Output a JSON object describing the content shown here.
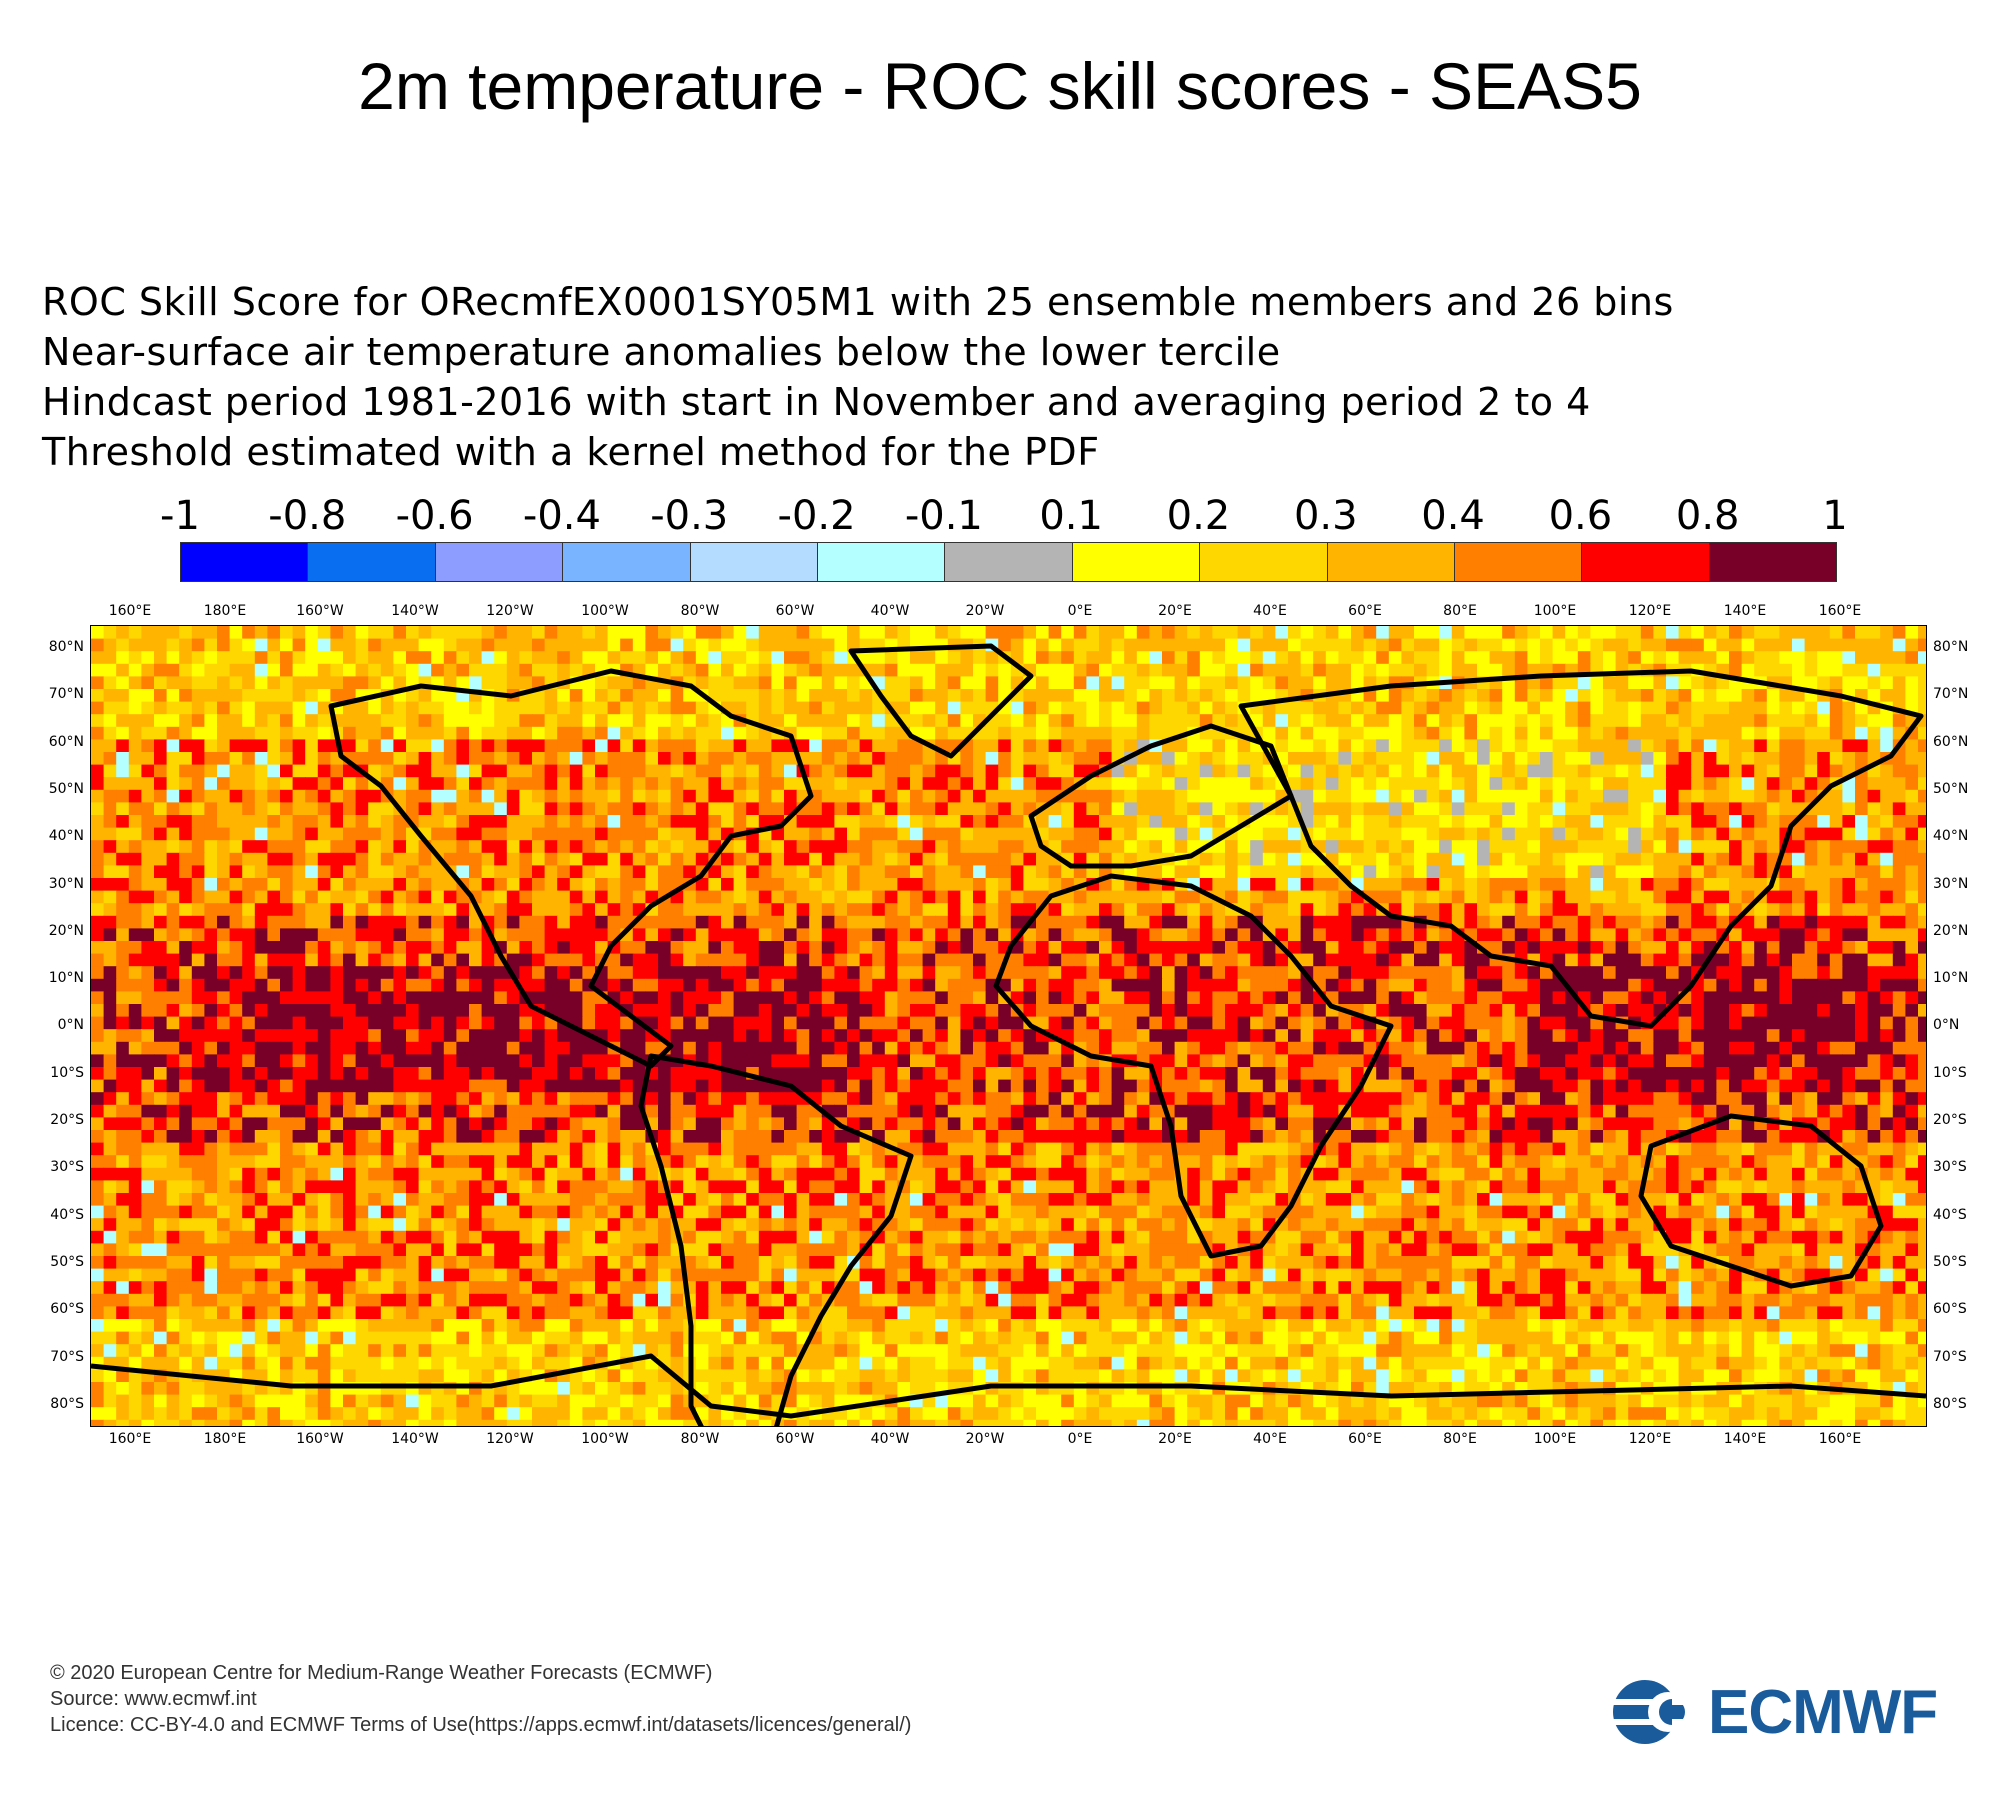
{
  "title": "2m temperature - ROC skill scores - SEAS5",
  "subtitle_lines": [
    "ROC Skill Score for ORecmfEX0001SY05M1 with 25 ensemble members and 26 bins",
    "Near-surface air temperature anomalies below the lower tercile",
    "Hindcast period 1981-2016 with start in November and averaging period  2 to  4",
    "Threshold estimated with a kernel method for the PDF"
  ],
  "colorbar": {
    "labels": [
      "-1",
      "-0.8",
      "-0.6",
      "-0.4",
      "-0.3",
      "-0.2",
      "-0.1",
      "0.1",
      "0.2",
      "0.3",
      "0.4",
      "0.6",
      "0.8",
      "1"
    ],
    "colors": [
      "#0000ff",
      "#0a6ef0",
      "#8c9cff",
      "#78b4ff",
      "#b4dcff",
      "#b4ffff",
      "#b4b4b4",
      "#ffff00",
      "#ffd700",
      "#ffb400",
      "#ff7f00",
      "#ff0000",
      "#780028"
    ]
  },
  "map": {
    "lon_labels": [
      "160°E",
      "180°E",
      "160°W",
      "140°W",
      "120°W",
      "100°W",
      "80°W",
      "60°W",
      "40°W",
      "20°W",
      "0°E",
      "20°E",
      "40°E",
      "60°E",
      "80°E",
      "100°E",
      "120°E",
      "140°E",
      "160°E"
    ],
    "lat_labels": [
      "80°N",
      "70°N",
      "60°N",
      "50°N",
      "40°N",
      "30°N",
      "20°N",
      "10°N",
      "0°N",
      "10°S",
      "20°S",
      "30°S",
      "40°S",
      "50°S",
      "60°S",
      "70°S",
      "80°S"
    ]
  },
  "footer": [
    "© 2020 European Centre for Medium-Range Weather Forecasts (ECMWF)",
    "Source: www.ecmwf.int",
    "Licence: CC-BY-4.0 and ECMWF Terms of Use(https://apps.ecmwf.int/datasets/licences/general/)"
  ],
  "logo_text": "ECMWF"
}
